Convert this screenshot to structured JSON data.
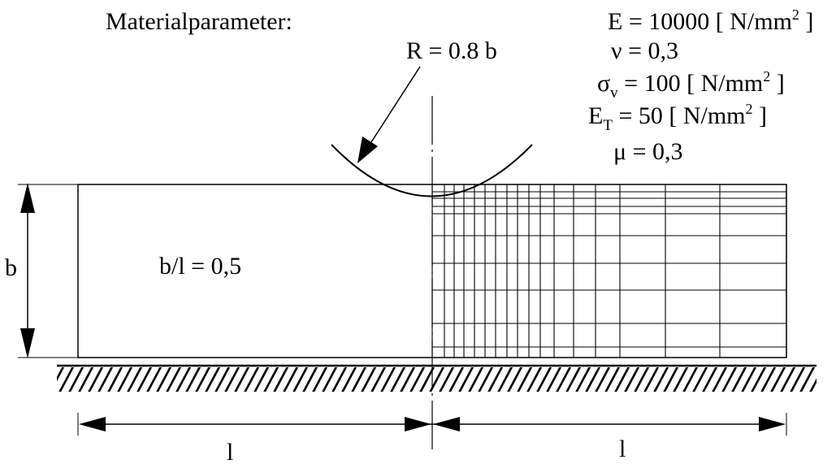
{
  "title": "Materialparameter:",
  "radius_label": "R = 0.8 b",
  "params": [
    {
      "sym": "E",
      "sub": "",
      "eq": " =  10000 [ N/mm",
      "sup": "2",
      "tail": " ]"
    },
    {
      "sym": "ν",
      "sub": "",
      "eq": " =   0,3",
      "sup": "",
      "tail": ""
    },
    {
      "sym": "σ",
      "sub": "v",
      "eq": " =  100  [ N/mm",
      "sup": "2",
      "tail": " ]"
    },
    {
      "sym": "E",
      "sub": "T",
      "eq": " =  50   [ N/mm",
      "sup": "2",
      "tail": " ]"
    },
    {
      "sym": "μ",
      "sub": "",
      "eq": " =   0,3",
      "sup": "",
      "tail": ""
    }
  ],
  "height_label": "b",
  "ratio_label": "b/l = 0,5",
  "length_left_label": "l",
  "length_right_label": "l",
  "mesh": {
    "columns": 16,
    "rows": 10
  }
}
